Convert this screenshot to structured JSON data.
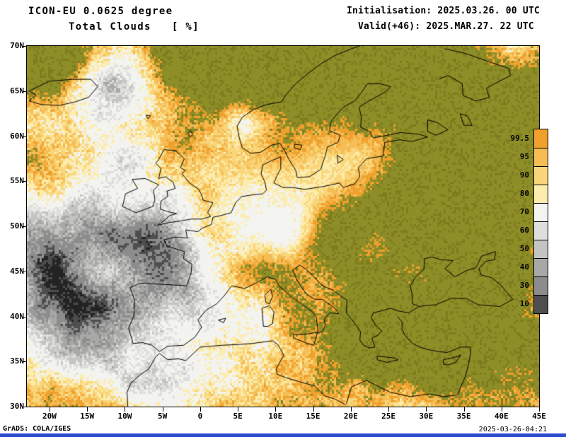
{
  "header": {
    "model_title": "ICON-EU 0.0625 degree",
    "field_title": "Total Clouds   [ %]",
    "init_label": "Initialisation: 2025.03.26. 00 UTC",
    "valid_label": "Valid(+46): 2025.MAR.27. 22 UTC"
  },
  "map": {
    "lat_labels": [
      "70N",
      "65N",
      "60N",
      "55N",
      "50N",
      "45N",
      "40N",
      "35N",
      "30N"
    ],
    "lon_labels": [
      "20W",
      "15W",
      "10W",
      "5W",
      "0",
      "5E",
      "10E",
      "15E",
      "20E",
      "25E",
      "30E",
      "35E",
      "40E",
      "45E"
    ],
    "border_color": "#000000"
  },
  "legend": {
    "unit": "%",
    "labels": [
      "99.5",
      "95",
      "90",
      "80",
      "70",
      "60",
      "50",
      "40",
      "30",
      "10"
    ],
    "colors": [
      "#f0a02c",
      "#f6bd55",
      "#f9d67a",
      "#fcecad",
      "#f3f3ef",
      "#dededc",
      "#c4c4c2",
      "#a8a8a6",
      "#8c8c8c",
      "#4e4e4e"
    ]
  },
  "map_colors": {
    "clear_olive": "#8e8e28",
    "clear_olive_dark": "#7d7d1f",
    "densest_gray": "#232323",
    "coastline": "#000000"
  },
  "footer": {
    "credit": "GrADS: COLA/IGES",
    "timestamp": "2025-03-26-04:21"
  },
  "decor": {
    "bottom_strip_color": "#2b4bd0"
  }
}
